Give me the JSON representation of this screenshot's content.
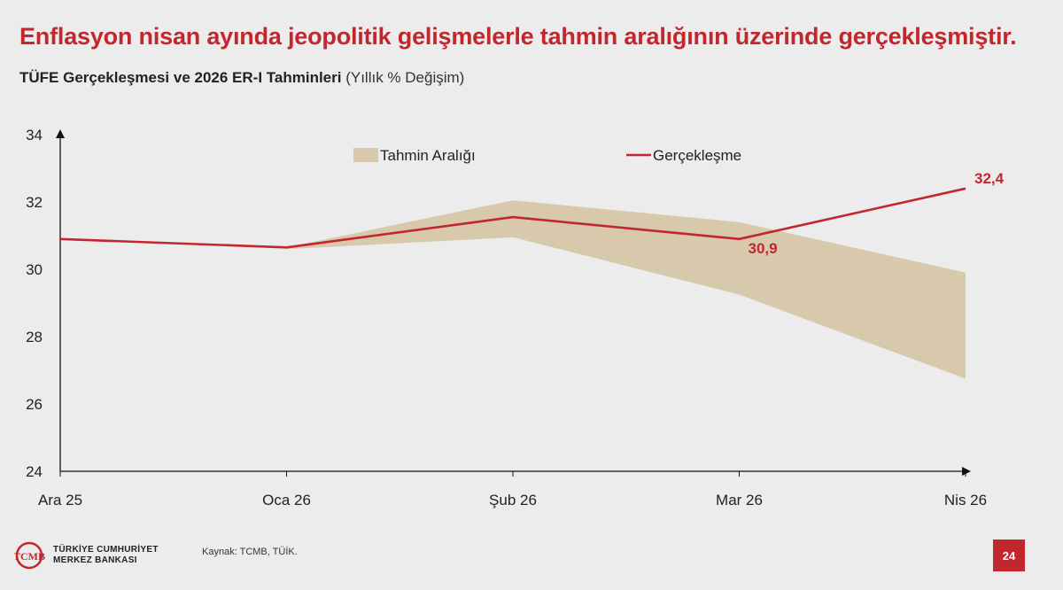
{
  "slide": {
    "headline": "Enflasyon nisan ayında jeopolitik gelişmelerle tahmin aralığının üzerinde gerçekleşmiştir.",
    "subtitle_bold": "TÜFE Gerçekleşmesi ve 2026 ER-I Tahminleri",
    "subtitle_light": " (Yıllık % Değişim)",
    "source": "Kaynak: TCMB, TÜİK.",
    "page_number": "24",
    "logo_line1": "TÜRKİYE CUMHURİYET",
    "logo_line2": "MERKEZ BANKASI",
    "logo_monogram": "TCMB"
  },
  "colors": {
    "accent": "#c1272d",
    "band": "#d8c9ac",
    "background": "#ececec",
    "axis": "#111111"
  },
  "chart_data": {
    "type": "line",
    "categories": [
      "Ara 25",
      "Oca 26",
      "Şub 26",
      "Mar 26",
      "Nis 26"
    ],
    "ylim": [
      24,
      34
    ],
    "yticks": [
      24,
      26,
      28,
      30,
      32,
      34
    ],
    "legend_position": "top",
    "grid": false,
    "series": [
      {
        "name": "Gerçekleşme",
        "values": [
          30.9,
          30.65,
          31.55,
          30.9,
          32.4
        ],
        "point_labels": {
          "3": "30,9",
          "4": "32,4"
        }
      }
    ],
    "band": {
      "name": "Tahmin Aralığı",
      "upper": [
        null,
        30.65,
        32.05,
        31.4,
        29.9
      ],
      "lower": [
        null,
        30.6,
        30.95,
        29.25,
        26.75
      ]
    }
  }
}
